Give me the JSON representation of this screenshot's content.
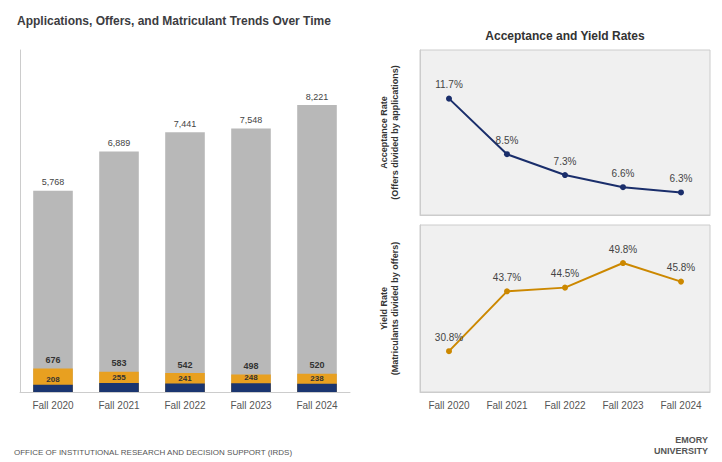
{
  "chart_data": [
    {
      "type": "bar",
      "title": "Applications, Offers, and Matriculant Trends Over Time",
      "categories": [
        "Fall 2020",
        "Fall 2021",
        "Fall 2022",
        "Fall 2023",
        "Fall 2024"
      ],
      "series": [
        {
          "color": "#b8b8b8",
          "values": [
            5768,
            6889,
            7441,
            7548,
            8221
          ],
          "value_labels": [
            "5,768",
            "6,889",
            "7,441",
            "7,548",
            "8,221"
          ]
        },
        {
          "color": "#e8a020",
          "values": [
            676,
            583,
            542,
            498,
            520
          ]
        },
        {
          "color": "#1a3570",
          "values": [
            208,
            255,
            241,
            248,
            238
          ]
        }
      ],
      "ylim": [
        0,
        9800
      ],
      "stacked": false,
      "data_labels": true,
      "tick_labels": "x",
      "grid": false,
      "annotations": [
        "OFFICE OF INSTITUTIONAL RESEARCH AND DECISION SUPPORT (IRDS)"
      ]
    },
    {
      "type": "line",
      "title": "Acceptance and Yield Rates",
      "ylabel": "Acceptance Rate\n(Offers divided by applications)",
      "categories": [
        "Fall 2020",
        "Fall 2021",
        "Fall 2022",
        "Fall 2023",
        "Fall 2024"
      ],
      "series": [
        {
          "color": "#1a2e6b",
          "marker": "circle",
          "line_style": "solid",
          "values": [
            11.7,
            8.5,
            7.3,
            6.6,
            6.3
          ],
          "value_labels": [
            "11.7%",
            "8.5%",
            "7.3%",
            "6.6%",
            "6.3%"
          ]
        }
      ],
      "ylim": [
        5.0,
        14.5
      ],
      "data_labels": true,
      "tick_labels": false,
      "grid": false
    },
    {
      "type": "line",
      "ylabel": "Yield Rate\n(Matriculants divided by offers)",
      "categories": [
        "Fall 2020",
        "Fall 2021",
        "Fall 2022",
        "Fall 2023",
        "Fall 2024"
      ],
      "series": [
        {
          "color": "#cc8800",
          "marker": "circle",
          "line_style": "solid",
          "values": [
            30.8,
            43.7,
            44.5,
            49.8,
            45.8
          ],
          "value_labels": [
            "30.8%",
            "43.7%",
            "44.5%",
            "49.8%",
            "45.8%"
          ]
        }
      ],
      "ylim": [
        22,
        58
      ],
      "data_labels": true,
      "tick_labels": "x",
      "grid": false,
      "annotations": [
        "EMORY\nUNIVERSITY"
      ]
    }
  ]
}
